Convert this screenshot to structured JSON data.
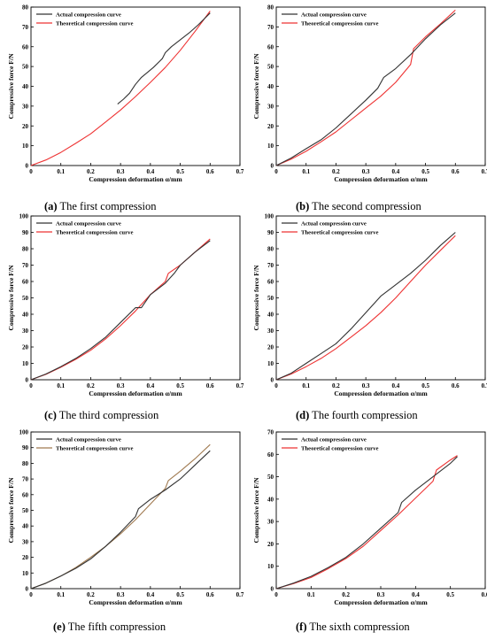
{
  "colors": {
    "actual_default": "#333333",
    "theoretical_default": "#ee3333",
    "actual_e": "#333333",
    "theoretical_e": "#a07a50"
  },
  "chart_data": [
    {
      "id": "a",
      "type": "line",
      "caption_label": "(a)",
      "caption_text": " The first compression",
      "xlabel": "Compression deformation α/mm",
      "ylabel": "Compressive force F/N",
      "xlim": [
        0,
        0.7
      ],
      "ylim": [
        0,
        80
      ],
      "xticks": [
        "0",
        "0.1",
        "0.2",
        "0.3",
        "0.4",
        "0.5",
        "0.6",
        "0.7"
      ],
      "yticks": [
        "0",
        "10",
        "20",
        "30",
        "40",
        "50",
        "60",
        "70",
        "80"
      ],
      "xtick_values": [
        0,
        0.1,
        0.2,
        0.3,
        0.4,
        0.5,
        0.6,
        0.7
      ],
      "ytick_values": [
        0,
        10,
        20,
        30,
        40,
        50,
        60,
        70,
        80
      ],
      "legend_position": "top-left",
      "series": [
        {
          "name": "Actual compression curve",
          "role": "actual",
          "x": [
            0.29,
            0.31,
            0.33,
            0.35,
            0.37,
            0.39,
            0.41,
            0.43,
            0.44,
            0.45,
            0.47,
            0.5,
            0.53,
            0.56,
            0.6
          ],
          "y": [
            31,
            33.5,
            36.5,
            41,
            44.5,
            47,
            49.5,
            52.5,
            54,
            57,
            60,
            63.5,
            67,
            71,
            77
          ]
        },
        {
          "name": "Theoretical compression curve",
          "role": "theoretical",
          "x": [
            0,
            0.05,
            0.1,
            0.15,
            0.2,
            0.25,
            0.3,
            0.35,
            0.4,
            0.45,
            0.5,
            0.55,
            0.6
          ],
          "y": [
            0,
            2.8,
            6.6,
            11.2,
            16,
            22,
            28,
            34.8,
            42,
            49.5,
            58.2,
            67.8,
            78
          ]
        }
      ]
    },
    {
      "id": "b",
      "type": "line",
      "caption_label": "(b)",
      "caption_text": " The second compression",
      "xlabel": "Compression deformation α/mm",
      "ylabel": "Compressive force F/N",
      "xlim": [
        0,
        0.7
      ],
      "ylim": [
        0,
        80
      ],
      "xticks": [
        "0",
        "0.1",
        "0.2",
        "0.3",
        "0.4",
        "0.5",
        "0.6",
        "0.7"
      ],
      "yticks": [
        "0",
        "10",
        "20",
        "30",
        "40",
        "50",
        "60",
        "70",
        "80"
      ],
      "xtick_values": [
        0,
        0.1,
        0.2,
        0.3,
        0.4,
        0.5,
        0.6,
        0.7
      ],
      "ytick_values": [
        0,
        10,
        20,
        30,
        40,
        50,
        60,
        70,
        80
      ],
      "legend_position": "top-left",
      "series": [
        {
          "name": "Actual compression curve",
          "role": "actual",
          "x": [
            0,
            0.05,
            0.1,
            0.15,
            0.2,
            0.25,
            0.3,
            0.34,
            0.36,
            0.4,
            0.45,
            0.5,
            0.55,
            0.6
          ],
          "y": [
            0,
            3.8,
            8.5,
            13,
            19,
            26,
            33,
            39,
            44.5,
            49,
            56,
            64,
            71,
            77
          ]
        },
        {
          "name": "Theoretical compression curve",
          "role": "theoretical",
          "x": [
            0,
            0.05,
            0.1,
            0.15,
            0.2,
            0.25,
            0.3,
            0.35,
            0.4,
            0.45,
            0.46,
            0.5,
            0.55,
            0.6
          ],
          "y": [
            0,
            3.2,
            7.2,
            12,
            17,
            23,
            29,
            35,
            42,
            51,
            59,
            65,
            71.5,
            78.5
          ]
        }
      ]
    },
    {
      "id": "c",
      "type": "line",
      "caption_label": "(c)",
      "caption_text": " The third compression",
      "xlabel": "Compression deformation α/mm",
      "ylabel": "Compressive force F/N",
      "xlim": [
        0,
        0.7
      ],
      "ylim": [
        0,
        100
      ],
      "xticks": [
        "0",
        "0.1",
        "0.2",
        "0.3",
        "0.4",
        "0.5",
        "0.6",
        "0.7"
      ],
      "yticks": [
        "0",
        "10",
        "20",
        "30",
        "40",
        "50",
        "60",
        "70",
        "80",
        "90",
        "100"
      ],
      "xtick_values": [
        0,
        0.1,
        0.2,
        0.3,
        0.4,
        0.5,
        0.6,
        0.7
      ],
      "ytick_values": [
        0,
        10,
        20,
        30,
        40,
        50,
        60,
        70,
        80,
        90,
        100
      ],
      "legend_position": "top-left",
      "series": [
        {
          "name": "Actual compression curve",
          "role": "actual",
          "x": [
            0,
            0.05,
            0.1,
            0.15,
            0.2,
            0.25,
            0.3,
            0.35,
            0.37,
            0.4,
            0.45,
            0.48,
            0.5,
            0.55,
            0.6
          ],
          "y": [
            0,
            3.5,
            8,
            13,
            19,
            26,
            35,
            44,
            44,
            52,
            59,
            65,
            70,
            78,
            85
          ]
        },
        {
          "name": "Theoretical compression curve",
          "role": "theoretical",
          "x": [
            0,
            0.05,
            0.1,
            0.15,
            0.2,
            0.25,
            0.3,
            0.35,
            0.4,
            0.45,
            0.46,
            0.5,
            0.55,
            0.6
          ],
          "y": [
            0,
            3.3,
            7.6,
            12.5,
            18,
            25,
            33,
            42,
            52,
            60,
            65,
            70,
            78,
            86
          ]
        }
      ]
    },
    {
      "id": "d",
      "type": "line",
      "caption_label": "(d)",
      "caption_text": " The fourth compression",
      "xlabel": "Compression deformation α/mm",
      "ylabel": "Compressive force F/N",
      "xlim": [
        0,
        0.7
      ],
      "ylim": [
        0,
        100
      ],
      "xticks": [
        "0",
        "0.1",
        "0.2",
        "0.3",
        "0.4",
        "0.5",
        "0.6",
        "0.7"
      ],
      "yticks": [
        "0",
        "10",
        "20",
        "30",
        "40",
        "50",
        "60",
        "70",
        "80",
        "90",
        "100"
      ],
      "xtick_values": [
        0,
        0.1,
        0.2,
        0.3,
        0.4,
        0.5,
        0.6,
        0.7
      ],
      "ytick_values": [
        0,
        10,
        20,
        30,
        40,
        50,
        60,
        70,
        80,
        90,
        100
      ],
      "legend_position": "top-left",
      "series": [
        {
          "name": "Actual compression curve",
          "role": "actual",
          "x": [
            0,
            0.05,
            0.1,
            0.15,
            0.2,
            0.25,
            0.3,
            0.35,
            0.4,
            0.45,
            0.5,
            0.55,
            0.6
          ],
          "y": [
            0,
            4,
            10,
            16,
            22,
            31,
            41,
            51,
            58,
            65,
            73,
            82,
            90
          ]
        },
        {
          "name": "Theoretical compression curve",
          "role": "theoretical",
          "x": [
            0,
            0.05,
            0.1,
            0.15,
            0.2,
            0.25,
            0.3,
            0.35,
            0.4,
            0.45,
            0.5,
            0.55,
            0.6
          ],
          "y": [
            0,
            3.5,
            8,
            13,
            19,
            26,
            33,
            41,
            50,
            60,
            70,
            79,
            88
          ]
        }
      ]
    },
    {
      "id": "e",
      "type": "line",
      "caption_label": "(e)",
      "caption_text": " The fifth compression",
      "xlabel": "Compression deformation α/mm",
      "ylabel": "Compressive force F/N",
      "xlim": [
        0,
        0.7
      ],
      "ylim": [
        0,
        100
      ],
      "xticks": [
        "0",
        "0.1",
        "0.2",
        "0.3",
        "0.4",
        "0.5",
        "0.6",
        "0.7"
      ],
      "yticks": [
        "0",
        "10",
        "20",
        "30",
        "40",
        "50",
        "60",
        "70",
        "80",
        "90",
        "100"
      ],
      "xtick_values": [
        0,
        0.1,
        0.2,
        0.3,
        0.4,
        0.5,
        0.6,
        0.7
      ],
      "ytick_values": [
        0,
        10,
        20,
        30,
        40,
        50,
        60,
        70,
        80,
        90,
        100
      ],
      "legend_position": "top-left",
      "series": [
        {
          "name": "Actual compression curve",
          "role": "actual",
          "x": [
            0,
            0.05,
            0.1,
            0.15,
            0.2,
            0.25,
            0.3,
            0.35,
            0.36,
            0.4,
            0.45,
            0.5,
            0.55,
            0.6
          ],
          "y": [
            0,
            3.5,
            8,
            13,
            19,
            27,
            36,
            46,
            51,
            57,
            63,
            70,
            79,
            88
          ]
        },
        {
          "name": "Theoretical compression curve",
          "role": "theoretical",
          "x": [
            0,
            0.05,
            0.1,
            0.15,
            0.2,
            0.25,
            0.3,
            0.35,
            0.4,
            0.45,
            0.46,
            0.5,
            0.55,
            0.6
          ],
          "y": [
            0,
            3.5,
            8,
            13.5,
            20,
            27,
            35,
            44,
            54,
            64,
            69,
            75,
            83,
            92
          ]
        }
      ]
    },
    {
      "id": "f",
      "type": "line",
      "caption_label": "(f)",
      "caption_text": " The sixth compression",
      "xlabel": "Compression deformation α/mm",
      "ylabel": "Compressive force F/N",
      "xlim": [
        0,
        0.6
      ],
      "ylim": [
        0,
        70
      ],
      "xticks": [
        "0",
        "0.1",
        "0.2",
        "0.3",
        "0.4",
        "0.5",
        "0.6"
      ],
      "yticks": [
        "0",
        "10",
        "20",
        "30",
        "40",
        "50",
        "60",
        "70"
      ],
      "xtick_values": [
        0,
        0.1,
        0.2,
        0.3,
        0.4,
        0.5,
        0.6
      ],
      "ytick_values": [
        0,
        10,
        20,
        30,
        40,
        50,
        60,
        70
      ],
      "legend_position": "top-left",
      "series": [
        {
          "name": "Actual compression curve",
          "role": "actual",
          "x": [
            0,
            0.05,
            0.1,
            0.15,
            0.2,
            0.25,
            0.3,
            0.35,
            0.36,
            0.4,
            0.45,
            0.5,
            0.52
          ],
          "y": [
            0,
            2.5,
            5.5,
            9.5,
            14,
            20,
            27,
            34,
            38.5,
            44,
            50,
            56,
            59
          ]
        },
        {
          "name": "Theoretical compression curve",
          "role": "theoretical",
          "x": [
            0,
            0.05,
            0.1,
            0.15,
            0.2,
            0.25,
            0.3,
            0.35,
            0.4,
            0.45,
            0.46,
            0.5,
            0.52
          ],
          "y": [
            0,
            2.3,
            5,
            9,
            13.5,
            19,
            26,
            33,
            40.5,
            48,
            53,
            57.5,
            59.5
          ]
        }
      ]
    }
  ]
}
